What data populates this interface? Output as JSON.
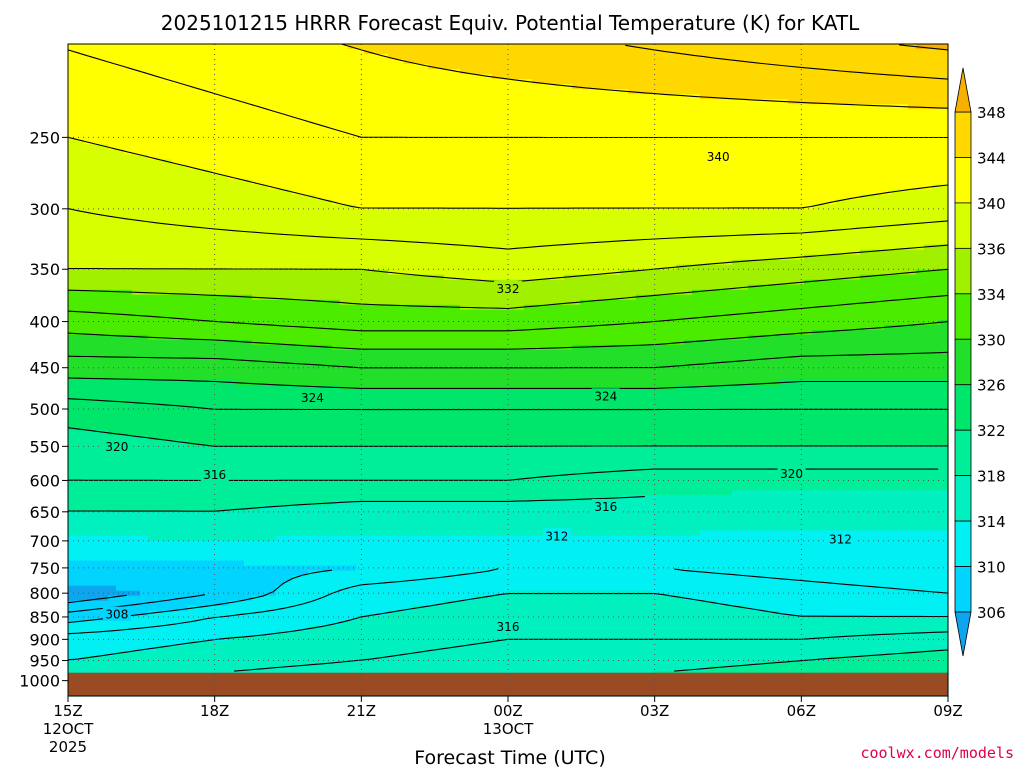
{
  "chart_data": {
    "type": "heatmap",
    "title": "2025101215 HRRR Forecast Equiv. Potential Temperature (K) for KATL",
    "xlabel": "Forecast Time (UTC)",
    "credit": "coolwx.com/models",
    "colors": {
      "ground": "#9c4a22",
      "grid": "#555555",
      "contour": "#000000"
    },
    "x_ticks": [
      {
        "hour": 0,
        "lines": [
          "15Z",
          "12OCT",
          "2025"
        ]
      },
      {
        "hour": 3,
        "lines": [
          "18Z"
        ]
      },
      {
        "hour": 6,
        "lines": [
          "21Z"
        ]
      },
      {
        "hour": 9,
        "lines": [
          "00Z",
          "13OCT"
        ]
      },
      {
        "hour": 12,
        "lines": [
          "03Z"
        ]
      },
      {
        "hour": 15,
        "lines": [
          "06Z"
        ]
      },
      {
        "hour": 18,
        "lines": [
          "09Z"
        ]
      }
    ],
    "xlim_hours": [
      0,
      18
    ],
    "y_axis": {
      "label_units": "hPa",
      "scale": "log",
      "ylim": [
        1040,
        197
      ],
      "ticks": [
        250,
        300,
        350,
        400,
        450,
        500,
        550,
        600,
        650,
        700,
        750,
        800,
        850,
        900,
        950,
        1000
      ]
    },
    "surface_pressure_hPa": 980,
    "colorbar": {
      "ticks": [
        306,
        310,
        314,
        318,
        322,
        326,
        330,
        334,
        336,
        340,
        344,
        348
      ],
      "bands": [
        {
          "from": 300,
          "to": 306,
          "color": "#0ea5ef"
        },
        {
          "from": 306,
          "to": 310,
          "color": "#00d4ff"
        },
        {
          "from": 310,
          "to": 314,
          "color": "#00f0f4"
        },
        {
          "from": 314,
          "to": 318,
          "color": "#00f0c0"
        },
        {
          "from": 318,
          "to": 322,
          "color": "#00ee98"
        },
        {
          "from": 322,
          "to": 326,
          "color": "#00e66a"
        },
        {
          "from": 326,
          "to": 330,
          "color": "#22e02a"
        },
        {
          "from": 330,
          "to": 334,
          "color": "#4cec00"
        },
        {
          "from": 334,
          "to": 336,
          "color": "#a0f000"
        },
        {
          "from": 336,
          "to": 340,
          "color": "#d8ff00"
        },
        {
          "from": 340,
          "to": 344,
          "color": "#ffff00"
        },
        {
          "from": 344,
          "to": 348,
          "color": "#ffd800"
        },
        {
          "from": 348,
          "to": 354,
          "color": "#f8b000"
        }
      ]
    },
    "contour_labels": [
      {
        "text": "340",
        "hour": 13.3,
        "p": 263
      },
      {
        "text": "332",
        "hour": 9.0,
        "p": 368
      },
      {
        "text": "324",
        "hour": 5.0,
        "p": 486
      },
      {
        "text": "324",
        "hour": 11.0,
        "p": 484
      },
      {
        "text": "320",
        "hour": 1.0,
        "p": 551
      },
      {
        "text": "316",
        "hour": 3.0,
        "p": 592
      },
      {
        "text": "320",
        "hour": 14.8,
        "p": 590
      },
      {
        "text": "316",
        "hour": 11.0,
        "p": 642
      },
      {
        "text": "312",
        "hour": 10.0,
        "p": 692
      },
      {
        "text": "312",
        "hour": 15.8,
        "p": 698
      },
      {
        "text": "308",
        "hour": 1.0,
        "p": 845
      },
      {
        "text": "316",
        "hour": 9.0,
        "p": 872
      }
    ],
    "columns": [
      {
        "hour": 0,
        "profile": [
          [
            980,
            316
          ],
          [
            950,
            314
          ],
          [
            900,
            313
          ],
          [
            850,
            309
          ],
          [
            800,
            304
          ],
          [
            780,
            306
          ],
          [
            750,
            309
          ],
          [
            700,
            313
          ],
          [
            650,
            318
          ],
          [
            600,
            320
          ],
          [
            550,
            321
          ],
          [
            500,
            323
          ],
          [
            450,
            327
          ],
          [
            400,
            331
          ],
          [
            350,
            336
          ],
          [
            300,
            338
          ],
          [
            250,
            340
          ],
          [
            200,
            342
          ]
        ]
      },
      {
        "hour": 3,
        "profile": [
          [
            980,
            316
          ],
          [
            950,
            315
          ],
          [
            900,
            314
          ],
          [
            850,
            312
          ],
          [
            800,
            308
          ],
          [
            750,
            309
          ],
          [
            700,
            314
          ],
          [
            650,
            318
          ],
          [
            600,
            320
          ],
          [
            550,
            322
          ],
          [
            500,
            324
          ],
          [
            450,
            327
          ],
          [
            400,
            332
          ],
          [
            350,
            336
          ],
          [
            300,
            339
          ],
          [
            250,
            341
          ],
          [
            200,
            343
          ]
        ]
      },
      {
        "hour": 6,
        "profile": [
          [
            980,
            317
          ],
          [
            950,
            316
          ],
          [
            900,
            315
          ],
          [
            850,
            314
          ],
          [
            800,
            313
          ],
          [
            750,
            310
          ],
          [
            700,
            313
          ],
          [
            650,
            317
          ],
          [
            600,
            320
          ],
          [
            550,
            322
          ],
          [
            500,
            324
          ],
          [
            450,
            328
          ],
          [
            400,
            333
          ],
          [
            350,
            336
          ],
          [
            300,
            340
          ],
          [
            250,
            342
          ],
          [
            200,
            344
          ]
        ]
      },
      {
        "hour": 9,
        "profile": [
          [
            980,
            317
          ],
          [
            950,
            317
          ],
          [
            900,
            316
          ],
          [
            850,
            315
          ],
          [
            800,
            314
          ],
          [
            750,
            312
          ],
          [
            700,
            313
          ],
          [
            650,
            317
          ],
          [
            600,
            320
          ],
          [
            550,
            322
          ],
          [
            500,
            324
          ],
          [
            450,
            328
          ],
          [
            400,
            333
          ],
          [
            350,
            337
          ],
          [
            300,
            340
          ],
          [
            250,
            342
          ],
          [
            200,
            345
          ]
        ]
      },
      {
        "hour": 12,
        "profile": [
          [
            980,
            318
          ],
          [
            950,
            317
          ],
          [
            900,
            316
          ],
          [
            850,
            315
          ],
          [
            800,
            314
          ],
          [
            750,
            312
          ],
          [
            700,
            313
          ],
          [
            650,
            317
          ],
          [
            600,
            319
          ],
          [
            550,
            322
          ],
          [
            500,
            324
          ],
          [
            450,
            328
          ],
          [
            400,
            332
          ],
          [
            350,
            336
          ],
          [
            300,
            340
          ],
          [
            250,
            342
          ],
          [
            200,
            346
          ]
        ]
      },
      {
        "hour": 15,
        "profile": [
          [
            980,
            319
          ],
          [
            950,
            318
          ],
          [
            900,
            316
          ],
          [
            850,
            314
          ],
          [
            800,
            313
          ],
          [
            750,
            311
          ],
          [
            700,
            313
          ],
          [
            650,
            316
          ],
          [
            600,
            319
          ],
          [
            550,
            322
          ],
          [
            500,
            324
          ],
          [
            450,
            327
          ],
          [
            400,
            331
          ],
          [
            350,
            335
          ],
          [
            300,
            340
          ],
          [
            250,
            342
          ],
          [
            200,
            347
          ]
        ]
      },
      {
        "hour": 18,
        "profile": [
          [
            980,
            320
          ],
          [
            950,
            319
          ],
          [
            900,
            317
          ],
          [
            850,
            314
          ],
          [
            800,
            312
          ],
          [
            750,
            310
          ],
          [
            700,
            313
          ],
          [
            650,
            316
          ],
          [
            600,
            319
          ],
          [
            550,
            322
          ],
          [
            500,
            324
          ],
          [
            450,
            327
          ],
          [
            400,
            330
          ],
          [
            350,
            334
          ],
          [
            300,
            339
          ],
          [
            250,
            342
          ],
          [
            200,
            348
          ]
        ]
      }
    ]
  }
}
